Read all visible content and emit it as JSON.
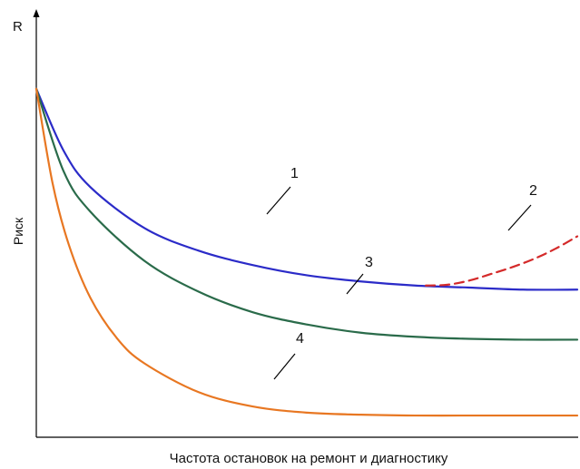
{
  "chart_data": {
    "type": "line",
    "title": "",
    "ylabel_top": "R",
    "ylabel": "Риск",
    "xlabel": "Частота остановок на ремонт и диагностику",
    "xlim": [
      0,
      100
    ],
    "ylim": [
      0,
      100
    ],
    "grid": false,
    "axis_ticks": false,
    "series": [
      {
        "id": "1",
        "color": "#2b2bc8",
        "dashed": false,
        "x": [
          0,
          5,
          10,
          20,
          30,
          40,
          50,
          60,
          70,
          80,
          90,
          100
        ],
        "y": [
          85,
          70,
          61,
          51,
          45.5,
          42,
          39.5,
          38,
          37,
          36.5,
          36,
          36
        ]
      },
      {
        "id": "2",
        "color": "#d42a2a",
        "dashed": true,
        "x": [
          72,
          76,
          80,
          84,
          88,
          92,
          96,
          100
        ],
        "y": [
          37,
          37.2,
          38.2,
          39.8,
          41.5,
          43.5,
          46,
          49
        ]
      },
      {
        "id": "3",
        "color": "#2a6b4a",
        "dashed": false,
        "x": [
          0,
          5,
          10,
          20,
          30,
          40,
          50,
          60,
          70,
          80,
          90,
          100
        ],
        "y": [
          85,
          65,
          55,
          43,
          35.5,
          30.5,
          27.5,
          25.5,
          24.5,
          24,
          23.8,
          23.8
        ]
      },
      {
        "id": "4",
        "color": "#e87722",
        "dashed": false,
        "x": [
          0,
          3,
          6,
          10,
          15,
          20,
          30,
          40,
          50,
          60,
          70,
          80,
          90,
          100
        ],
        "y": [
          85,
          62,
          47,
          34,
          24,
          18,
          11,
          7.5,
          6,
          5.5,
          5.3,
          5.3,
          5.3,
          5.3
        ]
      }
    ],
    "annotations": [
      {
        "text": "1",
        "series": "1"
      },
      {
        "text": "2",
        "series": "2"
      },
      {
        "text": "3",
        "series": "3"
      },
      {
        "text": "4",
        "series": "4"
      }
    ]
  }
}
